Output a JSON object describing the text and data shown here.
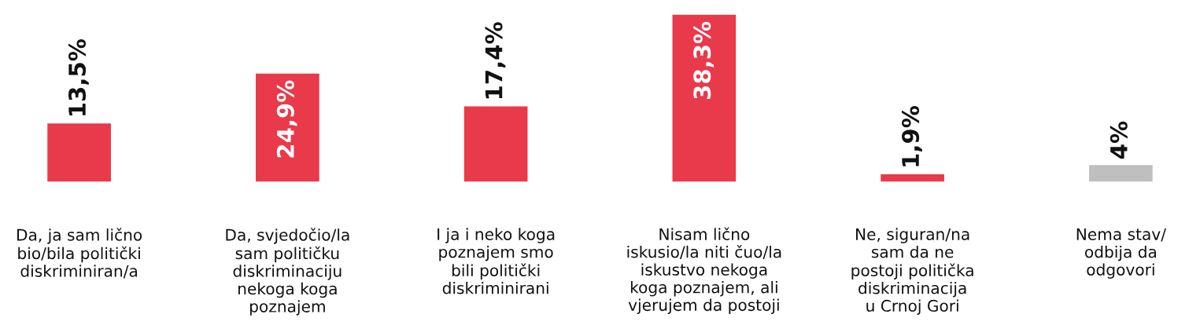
{
  "chart_data": {
    "type": "bar",
    "categories": [
      "Da, ja sam lično\nbio/bila politički\ndiskriminiran/a",
      "Da, svjedočio/la\nsam političku\ndiskriminaciju\nnekoga koga\npoznajem",
      "I ja i neko koga\npoznajem smo\nbili politički\ndiskriminirani",
      "Nisam lično\niskusio/la niti čuo/la\niskustvo nekoga\nkoga poznajem, ali\nvjerujem da postoji",
      "Ne, siguran/na\nsam da ne\npostoji politička\ndiskriminacija\nu Crnoj Gori",
      "Nema stav/\nodbija da\nodgovori"
    ],
    "values": [
      13.5,
      24.9,
      17.4,
      38.3,
      1.9,
      4
    ],
    "value_labels": [
      "13,5%",
      "24,9%",
      "17,4%",
      "38,3%",
      "1,9%",
      "4%"
    ],
    "colors": [
      "#e83a4b",
      "#e83a4b",
      "#e83a4b",
      "#e83a4b",
      "#e83a4b",
      "#bfbfbf"
    ],
    "grid": false,
    "legend": false
  }
}
